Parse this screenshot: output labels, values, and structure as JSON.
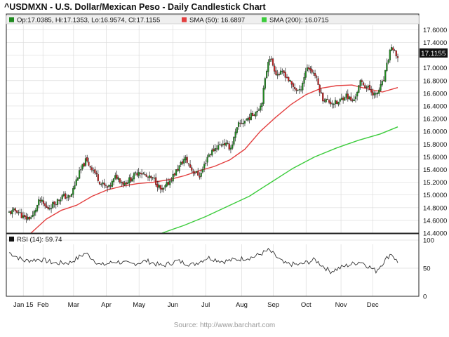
{
  "title": "^USDMXN - U.S. Dollar/Mexican Peso - Daily Candlestick Chart",
  "legend": {
    "ohlc": "Op:17.0385, Hi:17.1353, Lo:16.9574, Cl:17.1155",
    "sma50": "SMA (50): 16.6897",
    "sma200": "SMA (200): 16.0715"
  },
  "rsi_label": "RSI (14): 59.74",
  "last_price_label": "17.1155",
  "source": "Source: http://www.barchart.com",
  "colors": {
    "up": "#1f8a1f",
    "down": "#c81e1e",
    "sma50": "#e34040",
    "sma200": "#3ccc3c",
    "grid": "#dcdcdc",
    "frame": "#222222",
    "legend_bg": "#efefef",
    "ohlc_swatch": "#1f8a1f"
  },
  "chart_data": [
    {
      "type": "candlestick",
      "title": "^USDMXN - U.S. Dollar/Mexican Peso - Daily Candlestick Chart",
      "grid": true,
      "legend_position": "top",
      "x_labels": [
        "Jan 15",
        "Feb",
        "Mar",
        "Apr",
        "May",
        "Jun",
        "Jul",
        "Aug",
        "Sep",
        "Oct",
        "Nov",
        "Dec"
      ],
      "y_ticks": [
        "14.4000",
        "14.6000",
        "14.8000",
        "15.0000",
        "15.2000",
        "15.4000",
        "15.6000",
        "15.8000",
        "16.0000",
        "16.2000",
        "16.4000",
        "16.6000",
        "16.8000",
        "17.0000",
        "17.2000",
        "17.4000",
        "17.6000"
      ],
      "ylim": [
        14.4,
        17.67
      ],
      "last_ohlc": {
        "open": 17.0385,
        "high": 17.1353,
        "low": 16.9574,
        "close": 17.1155
      },
      "close_series": [
        {
          "x": "2015-01-02",
          "y": 14.72
        },
        {
          "x": "2015-01-09",
          "y": 14.76
        },
        {
          "x": "2015-01-16",
          "y": 14.63
        },
        {
          "x": "2015-01-23",
          "y": 14.65
        },
        {
          "x": "2015-01-30",
          "y": 14.92
        },
        {
          "x": "2015-02-06",
          "y": 14.78
        },
        {
          "x": "2015-02-13",
          "y": 14.88
        },
        {
          "x": "2015-02-20",
          "y": 14.98
        },
        {
          "x": "2015-02-27",
          "y": 14.96
        },
        {
          "x": "2015-03-06",
          "y": 15.3
        },
        {
          "x": "2015-03-13",
          "y": 15.54
        },
        {
          "x": "2015-03-20",
          "y": 15.4
        },
        {
          "x": "2015-03-27",
          "y": 15.18
        },
        {
          "x": "2015-04-03",
          "y": 15.1
        },
        {
          "x": "2015-04-10",
          "y": 15.3
        },
        {
          "x": "2015-04-17",
          "y": 15.18
        },
        {
          "x": "2015-04-24",
          "y": 15.26
        },
        {
          "x": "2015-05-01",
          "y": 15.38
        },
        {
          "x": "2015-05-08",
          "y": 15.28
        },
        {
          "x": "2015-05-15",
          "y": 15.24
        },
        {
          "x": "2015-05-22",
          "y": 15.05
        },
        {
          "x": "2015-05-29",
          "y": 15.22
        },
        {
          "x": "2015-06-05",
          "y": 15.4
        },
        {
          "x": "2015-06-12",
          "y": 15.58
        },
        {
          "x": "2015-06-19",
          "y": 15.38
        },
        {
          "x": "2015-06-26",
          "y": 15.3
        },
        {
          "x": "2015-07-03",
          "y": 15.62
        },
        {
          "x": "2015-07-10",
          "y": 15.74
        },
        {
          "x": "2015-07-17",
          "y": 15.82
        },
        {
          "x": "2015-07-24",
          "y": 15.74
        },
        {
          "x": "2015-07-31",
          "y": 16.1
        },
        {
          "x": "2015-08-07",
          "y": 16.18
        },
        {
          "x": "2015-08-14",
          "y": 16.28
        },
        {
          "x": "2015-08-21",
          "y": 16.42
        },
        {
          "x": "2015-08-28",
          "y": 17.2
        },
        {
          "x": "2015-09-04",
          "y": 16.9
        },
        {
          "x": "2015-09-11",
          "y": 16.92
        },
        {
          "x": "2015-09-18",
          "y": 16.72
        },
        {
          "x": "2015-09-25",
          "y": 16.62
        },
        {
          "x": "2015-10-02",
          "y": 17.02
        },
        {
          "x": "2015-10-09",
          "y": 16.9
        },
        {
          "x": "2015-10-16",
          "y": 16.52
        },
        {
          "x": "2015-10-23",
          "y": 16.46
        },
        {
          "x": "2015-10-30",
          "y": 16.44
        },
        {
          "x": "2015-11-06",
          "y": 16.58
        },
        {
          "x": "2015-11-13",
          "y": 16.46
        },
        {
          "x": "2015-11-20",
          "y": 16.78
        },
        {
          "x": "2015-11-27",
          "y": 16.68
        },
        {
          "x": "2015-12-04",
          "y": 16.56
        },
        {
          "x": "2015-12-11",
          "y": 16.8
        },
        {
          "x": "2015-12-18",
          "y": 17.35
        },
        {
          "x": "2015-12-24",
          "y": 17.1155
        }
      ],
      "series": [
        {
          "name": "SMA (50)",
          "values": [
            {
              "x": "2015-01-22",
              "y": 14.4
            },
            {
              "x": "2015-02-05",
              "y": 14.62
            },
            {
              "x": "2015-02-19",
              "y": 14.76
            },
            {
              "x": "2015-03-05",
              "y": 14.84
            },
            {
              "x": "2015-03-19",
              "y": 14.98
            },
            {
              "x": "2015-04-02",
              "y": 15.08
            },
            {
              "x": "2015-04-16",
              "y": 15.14
            },
            {
              "x": "2015-04-30",
              "y": 15.18
            },
            {
              "x": "2015-05-14",
              "y": 15.2
            },
            {
              "x": "2015-05-28",
              "y": 15.24
            },
            {
              "x": "2015-06-11",
              "y": 15.3
            },
            {
              "x": "2015-06-25",
              "y": 15.38
            },
            {
              "x": "2015-07-09",
              "y": 15.45
            },
            {
              "x": "2015-07-23",
              "y": 15.55
            },
            {
              "x": "2015-08-06",
              "y": 15.72
            },
            {
              "x": "2015-08-20",
              "y": 16.0
            },
            {
              "x": "2015-09-03",
              "y": 16.22
            },
            {
              "x": "2015-09-17",
              "y": 16.42
            },
            {
              "x": "2015-10-01",
              "y": 16.58
            },
            {
              "x": "2015-10-15",
              "y": 16.68
            },
            {
              "x": "2015-10-29",
              "y": 16.72
            },
            {
              "x": "2015-11-12",
              "y": 16.73
            },
            {
              "x": "2015-11-26",
              "y": 16.67
            },
            {
              "x": "2015-12-10",
              "y": 16.62
            },
            {
              "x": "2015-12-24",
              "y": 16.6897
            }
          ]
        },
        {
          "name": "SMA (200)",
          "values": [
            {
              "x": "2015-05-22",
              "y": 14.4
            },
            {
              "x": "2015-06-11",
              "y": 14.52
            },
            {
              "x": "2015-07-01",
              "y": 14.66
            },
            {
              "x": "2015-07-21",
              "y": 14.82
            },
            {
              "x": "2015-08-10",
              "y": 14.98
            },
            {
              "x": "2015-08-30",
              "y": 15.2
            },
            {
              "x": "2015-09-19",
              "y": 15.42
            },
            {
              "x": "2015-10-09",
              "y": 15.6
            },
            {
              "x": "2015-10-29",
              "y": 15.74
            },
            {
              "x": "2015-11-18",
              "y": 15.86
            },
            {
              "x": "2015-12-08",
              "y": 15.96
            },
            {
              "x": "2015-12-24",
              "y": 16.0715
            }
          ]
        }
      ]
    },
    {
      "type": "line",
      "title": "RSI (14): 59.74",
      "grid": true,
      "y_ticks": [
        "0",
        "50",
        "100"
      ],
      "ylim": [
        0,
        100
      ],
      "series": [
        {
          "name": "RSI (14)",
          "values": [
            {
              "x": "2015-01-02",
              "y": 78
            },
            {
              "x": "2015-01-16",
              "y": 63
            },
            {
              "x": "2015-01-30",
              "y": 66
            },
            {
              "x": "2015-02-13",
              "y": 59
            },
            {
              "x": "2015-02-27",
              "y": 60
            },
            {
              "x": "2015-03-13",
              "y": 77
            },
            {
              "x": "2015-03-27",
              "y": 55
            },
            {
              "x": "2015-04-10",
              "y": 62
            },
            {
              "x": "2015-04-24",
              "y": 57
            },
            {
              "x": "2015-05-08",
              "y": 63
            },
            {
              "x": "2015-05-22",
              "y": 54
            },
            {
              "x": "2015-06-05",
              "y": 63
            },
            {
              "x": "2015-06-19",
              "y": 56
            },
            {
              "x": "2015-07-03",
              "y": 69
            },
            {
              "x": "2015-07-17",
              "y": 62
            },
            {
              "x": "2015-07-31",
              "y": 66
            },
            {
              "x": "2015-08-14",
              "y": 70
            },
            {
              "x": "2015-08-28",
              "y": 82
            },
            {
              "x": "2015-09-11",
              "y": 58
            },
            {
              "x": "2015-09-25",
              "y": 56
            },
            {
              "x": "2015-10-09",
              "y": 65
            },
            {
              "x": "2015-10-23",
              "y": 44
            },
            {
              "x": "2015-11-06",
              "y": 54
            },
            {
              "x": "2015-11-20",
              "y": 62
            },
            {
              "x": "2015-12-04",
              "y": 45
            },
            {
              "x": "2015-12-18",
              "y": 77
            },
            {
              "x": "2015-12-24",
              "y": 59.74
            }
          ]
        }
      ]
    }
  ]
}
